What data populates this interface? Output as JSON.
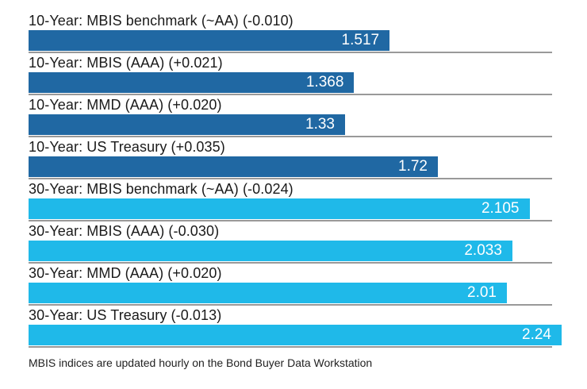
{
  "chart_data": {
    "type": "bar",
    "orientation": "horizontal",
    "axis_max": 2.2,
    "grid": false,
    "legend": "none",
    "colors": {
      "10-year": "#2068a3",
      "30-year": "#1fb9e9"
    },
    "bars": [
      {
        "label": "10-Year: MBIS benchmark (~AA) (-0.010)",
        "value": 1.517,
        "display_value": "1.517",
        "group": "10-year"
      },
      {
        "label": "10-Year: MBIS (AAA) (+0.021)",
        "value": 1.368,
        "display_value": "1.368",
        "group": "10-year"
      },
      {
        "label": "10-Year: MMD (AAA) (+0.020)",
        "value": 1.33,
        "display_value": "1.33",
        "group": "10-year"
      },
      {
        "label": "10-Year: US Treasury (+0.035)",
        "value": 1.72,
        "display_value": "1.72",
        "group": "10-year"
      },
      {
        "label": "30-Year: MBIS benchmark (~AA) (-0.024)",
        "value": 2.105,
        "display_value": "2.105",
        "group": "30-year"
      },
      {
        "label": "30-Year: MBIS (AAA) (-0.030)",
        "value": 2.033,
        "display_value": "2.033",
        "group": "30-year"
      },
      {
        "label": "30-Year: MMD (AAA) (+0.020)",
        "value": 2.01,
        "display_value": "2.01",
        "group": "30-year"
      },
      {
        "label": "30-Year: US Treasury (-0.013)",
        "value": 2.24,
        "display_value": "2.24",
        "group": "30-year"
      }
    ]
  },
  "footer": {
    "note": "MBIS indices are updated hourly on the Bond Buyer Data Workstation"
  }
}
